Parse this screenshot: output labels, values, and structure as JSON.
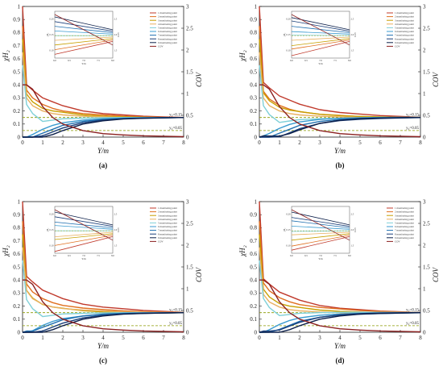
{
  "panels": [
    {
      "caption": "(a)",
      "offsets": [
        0.0,
        0.0,
        0.0,
        0.0,
        0.0,
        0.0,
        0.0,
        0.0,
        0.0,
        0.0
      ]
    },
    {
      "caption": "(b)",
      "offsets": [
        0.02,
        -0.01,
        0.01,
        0.0,
        -0.01,
        0.01,
        0.0,
        -0.01,
        0.01,
        0.0
      ]
    },
    {
      "caption": "(c)",
      "offsets": [
        0.03,
        0.01,
        -0.01,
        0.02,
        0.0,
        -0.01,
        0.01,
        0.0,
        0.0,
        0.0
      ]
    },
    {
      "caption": "(d)",
      "offsets": [
        0.01,
        0.02,
        0.0,
        -0.01,
        0.01,
        0.0,
        -0.01,
        0.01,
        0.0,
        0.0
      ]
    }
  ],
  "chart_data": {
    "type": "line",
    "xlabel": "Y/m",
    "ylabel_left": "χH₂",
    "ylabel_right": "COV",
    "xlim": [
      0,
      8
    ],
    "ylim_left": [
      0,
      1.0
    ],
    "ylim_right": [
      0,
      3.0
    ],
    "x_ticks": [
      0,
      1,
      2,
      3,
      4,
      5,
      6,
      7,
      8
    ],
    "y_left_ticks": [
      0.0,
      0.1,
      0.2,
      0.3,
      0.4,
      0.5,
      0.6,
      0.7,
      0.8,
      0.9,
      1.0
    ],
    "y_right_ticks": [
      0.0,
      0.5,
      1.0,
      1.5,
      2.0,
      2.5,
      3.0
    ],
    "reference_lines": [
      {
        "label": "y₀=0.15",
        "y": 0.15,
        "color": "#8a9a00"
      },
      {
        "label": "y₀=0.05",
        "y": 0.05,
        "color": "#8a9a00"
      }
    ],
    "x": [
      0,
      0.2,
      0.5,
      1,
      1.5,
      2,
      3,
      4,
      5,
      6,
      7,
      8
    ],
    "series": [
      {
        "name": "1 monitoring point",
        "color": "#c0392b",
        "axis": "left",
        "values": [
          1.0,
          0.4,
          0.36,
          0.3,
          0.27,
          0.24,
          0.2,
          0.18,
          0.17,
          0.16,
          0.155,
          0.15
        ]
      },
      {
        "name": "2 monitoring point",
        "color": "#e07020",
        "axis": "left",
        "values": [
          0.85,
          0.36,
          0.3,
          0.25,
          0.22,
          0.2,
          0.18,
          0.17,
          0.16,
          0.155,
          0.152,
          0.15
        ]
      },
      {
        "name": "3 monitoring point",
        "color": "#c8a000",
        "axis": "left",
        "values": [
          0.75,
          0.33,
          0.27,
          0.22,
          0.2,
          0.19,
          0.17,
          0.16,
          0.155,
          0.152,
          0.15,
          0.15
        ]
      },
      {
        "name": "4 monitoring point",
        "color": "#e8b060",
        "axis": "left",
        "values": [
          0.65,
          0.3,
          0.24,
          0.2,
          0.18,
          0.17,
          0.16,
          0.155,
          0.15,
          0.15,
          0.15,
          0.15
        ]
      },
      {
        "name": "5 monitoring point",
        "color": "#7fd0d8",
        "axis": "left",
        "values": [
          0.55,
          0.25,
          0.18,
          0.12,
          0.13,
          0.14,
          0.145,
          0.148,
          0.15,
          0.15,
          0.15,
          0.15
        ]
      },
      {
        "name": "6 monitoring point",
        "color": "#3a9bd0",
        "axis": "left",
        "values": [
          0.0,
          0.0,
          0.02,
          0.06,
          0.09,
          0.11,
          0.13,
          0.14,
          0.145,
          0.148,
          0.15,
          0.15
        ]
      },
      {
        "name": "7 monitoring point",
        "color": "#1f6fb0",
        "axis": "left",
        "values": [
          0.0,
          0.0,
          0.0,
          0.03,
          0.06,
          0.09,
          0.12,
          0.135,
          0.142,
          0.146,
          0.148,
          0.15
        ]
      },
      {
        "name": "8 monitoring point",
        "color": "#1b3f7a",
        "axis": "left",
        "values": [
          0.0,
          0.0,
          0.0,
          0.01,
          0.04,
          0.07,
          0.11,
          0.13,
          0.14,
          0.145,
          0.148,
          0.15
        ]
      },
      {
        "name": "9 monitoring point",
        "color": "#0c1f4a",
        "axis": "left",
        "values": [
          0.0,
          0.0,
          0.0,
          0.0,
          0.02,
          0.05,
          0.1,
          0.125,
          0.138,
          0.144,
          0.147,
          0.15
        ]
      },
      {
        "name": "COV",
        "color": "#8b2020",
        "axis": "right",
        "values": [
          1.2,
          1.2,
          1.1,
          0.7,
          0.45,
          0.3,
          0.15,
          0.08,
          0.05,
          0.03,
          0.02,
          0.01
        ]
      }
    ],
    "legend": [
      "1 monitoring point",
      "2 monitoring point",
      "3 monitoring point",
      "4 monitoring point",
      "5 monitoring point",
      "6 monitoring point",
      "7 monitoring point",
      "8 monitoring point",
      "9 monitoring point",
      "COV"
    ],
    "inset": {
      "xlabel": "Y/m",
      "ylabel_left": "χH₂",
      "ylabel_right": "COV",
      "x_ticks": [
        "6.0",
        "6.5",
        "7.0",
        "7.5",
        "8.0"
      ],
      "y_left_ticks": [
        "0.20",
        "0.15",
        "0.10"
      ],
      "y_right_ticks": [
        "2.5",
        "2.0",
        "1.5"
      ]
    }
  }
}
